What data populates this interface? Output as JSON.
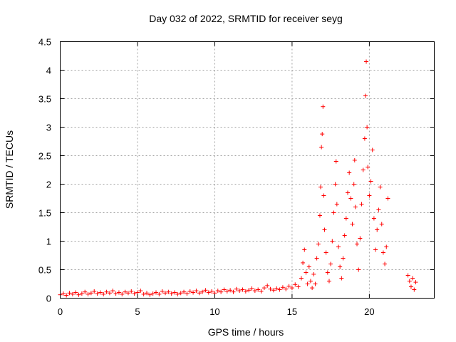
{
  "chart_data": {
    "type": "scatter",
    "title": "Day 032 of 2022, SRMTID for receiver seyg",
    "xlabel": "GPS time / hours",
    "ylabel": "SRMTID / TECUs",
    "xlim": [
      0,
      24.2
    ],
    "ylim": [
      0,
      4.5
    ],
    "grid": true,
    "marker": "+",
    "color": "#ff0000",
    "x_ticks": [
      0,
      5,
      10,
      15,
      20
    ],
    "y_ticks": [
      0,
      0.5,
      1,
      1.5,
      2,
      2.5,
      3,
      3.5,
      4,
      4.5
    ],
    "x_tick_labels": [
      "0",
      "5",
      "10",
      "15",
      "20"
    ],
    "y_tick_labels": [
      "0",
      "0.5",
      "1",
      "1.5",
      "2",
      "2.5",
      "3",
      "3.5",
      "4",
      "4.5"
    ],
    "series": [
      {
        "name": "SRMTID",
        "points": [
          [
            0.0,
            0.06
          ],
          [
            0.2,
            0.08
          ],
          [
            0.4,
            0.05
          ],
          [
            0.6,
            0.09
          ],
          [
            0.8,
            0.07
          ],
          [
            1.0,
            0.1
          ],
          [
            1.2,
            0.06
          ],
          [
            1.4,
            0.08
          ],
          [
            1.6,
            0.11
          ],
          [
            1.8,
            0.07
          ],
          [
            2.0,
            0.09
          ],
          [
            2.2,
            0.12
          ],
          [
            2.4,
            0.08
          ],
          [
            2.6,
            0.1
          ],
          [
            2.8,
            0.07
          ],
          [
            3.0,
            0.11
          ],
          [
            3.2,
            0.09
          ],
          [
            3.4,
            0.13
          ],
          [
            3.6,
            0.08
          ],
          [
            3.8,
            0.1
          ],
          [
            4.0,
            0.07
          ],
          [
            4.2,
            0.11
          ],
          [
            4.4,
            0.09
          ],
          [
            4.6,
            0.12
          ],
          [
            4.8,
            0.08
          ],
          [
            5.0,
            0.1
          ],
          [
            5.2,
            0.13
          ],
          [
            5.4,
            0.07
          ],
          [
            5.6,
            0.09
          ],
          [
            5.8,
            0.06
          ],
          [
            6.0,
            0.08
          ],
          [
            6.2,
            0.1
          ],
          [
            6.4,
            0.07
          ],
          [
            6.6,
            0.12
          ],
          [
            6.8,
            0.09
          ],
          [
            7.0,
            0.11
          ],
          [
            7.2,
            0.08
          ],
          [
            7.4,
            0.1
          ],
          [
            7.6,
            0.07
          ],
          [
            7.8,
            0.09
          ],
          [
            8.0,
            0.11
          ],
          [
            8.2,
            0.08
          ],
          [
            8.4,
            0.12
          ],
          [
            8.6,
            0.1
          ],
          [
            8.8,
            0.13
          ],
          [
            9.0,
            0.09
          ],
          [
            9.2,
            0.11
          ],
          [
            9.4,
            0.14
          ],
          [
            9.6,
            0.1
          ],
          [
            9.8,
            0.12
          ],
          [
            10.0,
            0.09
          ],
          [
            10.2,
            0.13
          ],
          [
            10.4,
            0.11
          ],
          [
            10.6,
            0.15
          ],
          [
            10.8,
            0.12
          ],
          [
            11.0,
            0.14
          ],
          [
            11.2,
            0.11
          ],
          [
            11.4,
            0.16
          ],
          [
            11.6,
            0.13
          ],
          [
            11.8,
            0.15
          ],
          [
            12.0,
            0.12
          ],
          [
            12.2,
            0.14
          ],
          [
            12.4,
            0.17
          ],
          [
            12.6,
            0.13
          ],
          [
            12.8,
            0.15
          ],
          [
            13.0,
            0.12
          ],
          [
            13.2,
            0.18
          ],
          [
            13.4,
            0.22
          ],
          [
            13.6,
            0.16
          ],
          [
            13.8,
            0.14
          ],
          [
            14.0,
            0.17
          ],
          [
            14.2,
            0.15
          ],
          [
            14.4,
            0.19
          ],
          [
            14.6,
            0.16
          ],
          [
            14.8,
            0.21
          ],
          [
            15.0,
            0.18
          ],
          [
            15.2,
            0.24
          ],
          [
            15.4,
            0.2
          ],
          [
            15.6,
            0.35
          ],
          [
            15.7,
            0.62
          ],
          [
            15.8,
            0.85
          ],
          [
            15.9,
            0.45
          ],
          [
            16.0,
            0.25
          ],
          [
            16.1,
            0.55
          ],
          [
            16.2,
            0.3
          ],
          [
            16.3,
            0.18
          ],
          [
            16.4,
            0.42
          ],
          [
            16.5,
            0.25
          ],
          [
            16.6,
            0.7
          ],
          [
            16.7,
            0.95
          ],
          [
            16.8,
            1.45
          ],
          [
            16.85,
            1.95
          ],
          [
            16.9,
            2.65
          ],
          [
            16.95,
            2.88
          ],
          [
            17.0,
            3.36
          ],
          [
            17.05,
            1.8
          ],
          [
            17.1,
            1.2
          ],
          [
            17.2,
            0.8
          ],
          [
            17.3,
            0.45
          ],
          [
            17.4,
            0.3
          ],
          [
            17.5,
            0.6
          ],
          [
            17.6,
            1.0
          ],
          [
            17.7,
            1.5
          ],
          [
            17.8,
            2.0
          ],
          [
            17.85,
            2.4
          ],
          [
            17.9,
            1.65
          ],
          [
            18.0,
            0.9
          ],
          [
            18.1,
            0.55
          ],
          [
            18.2,
            0.35
          ],
          [
            18.3,
            0.7
          ],
          [
            18.4,
            1.1
          ],
          [
            18.5,
            1.4
          ],
          [
            18.6,
            1.85
          ],
          [
            18.7,
            2.2
          ],
          [
            18.8,
            1.75
          ],
          [
            18.9,
            1.3
          ],
          [
            19.0,
            2.0
          ],
          [
            19.05,
            2.42
          ],
          [
            19.1,
            1.6
          ],
          [
            19.2,
            0.95
          ],
          [
            19.3,
            0.5
          ],
          [
            19.4,
            1.05
          ],
          [
            19.5,
            1.65
          ],
          [
            19.6,
            2.25
          ],
          [
            19.7,
            2.8
          ],
          [
            19.75,
            3.55
          ],
          [
            19.8,
            4.15
          ],
          [
            19.85,
            3.0
          ],
          [
            19.9,
            2.3
          ],
          [
            20.0,
            1.8
          ],
          [
            20.1,
            2.05
          ],
          [
            20.2,
            2.6
          ],
          [
            20.3,
            1.4
          ],
          [
            20.4,
            0.85
          ],
          [
            20.5,
            1.2
          ],
          [
            20.6,
            1.55
          ],
          [
            20.7,
            1.95
          ],
          [
            20.8,
            1.3
          ],
          [
            20.9,
            0.8
          ],
          [
            21.0,
            0.6
          ],
          [
            21.1,
            0.9
          ],
          [
            21.2,
            1.75
          ],
          [
            22.5,
            0.4
          ],
          [
            22.6,
            0.3
          ],
          [
            22.7,
            0.2
          ],
          [
            22.8,
            0.35
          ],
          [
            22.9,
            0.15
          ],
          [
            23.0,
            0.28
          ]
        ]
      }
    ]
  }
}
